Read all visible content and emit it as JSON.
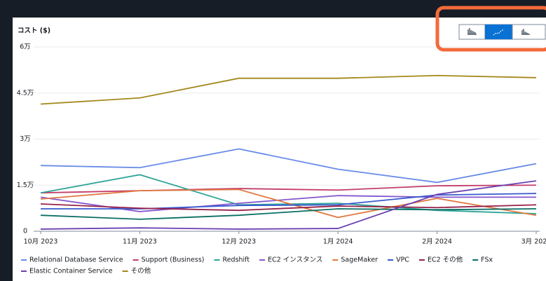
{
  "chart_data": {
    "type": "line",
    "ylabel": "コスト ($)",
    "categories": [
      "10月 2023",
      "11月 2023",
      "12月 2023",
      "1月 2024",
      "2月 2024",
      "3月 2024"
    ],
    "ylim": [
      0,
      60000
    ],
    "yticks": [
      {
        "value": 0,
        "label": "0"
      },
      {
        "value": 15000,
        "label": "1.5万"
      },
      {
        "value": 30000,
        "label": "3万"
      },
      {
        "value": 45000,
        "label": "4.5万"
      },
      {
        "value": 60000,
        "label": "6万"
      }
    ],
    "grid": true,
    "series": [
      {
        "name": "Relational Database Service",
        "color": "#688ae8",
        "values": [
          21400,
          20700,
          26800,
          20200,
          15900,
          22000
        ]
      },
      {
        "name": "Support (Business)",
        "color": "#c33d69",
        "values": [
          12500,
          13200,
          13900,
          13400,
          14800,
          15000
        ]
      },
      {
        "name": "Redshift",
        "color": "#2ea597",
        "values": [
          12500,
          18400,
          8600,
          9100,
          6800,
          5700
        ]
      },
      {
        "name": "EC2 インスタンス",
        "color": "#8456ce",
        "values": [
          11100,
          6400,
          9100,
          11600,
          11100,
          11100
        ]
      },
      {
        "name": "SageMaker",
        "color": "#e07941",
        "values": [
          10500,
          13200,
          13600,
          4500,
          10700,
          5200
        ]
      },
      {
        "name": "VPC",
        "color": "#3759ce",
        "values": [
          7300,
          7300,
          8400,
          8600,
          11800,
          12300
        ]
      },
      {
        "name": "EC2 その他",
        "color": "#962249",
        "values": [
          8900,
          7500,
          6800,
          8200,
          7700,
          8600
        ]
      },
      {
        "name": "FSx",
        "color": "#096f64",
        "values": [
          5200,
          3900,
          5200,
          7300,
          7000,
          7300
        ]
      },
      {
        "name": "Elastic Container Service",
        "color": "#6b40b2",
        "values": [
          700,
          1100,
          700,
          900,
          12000,
          16400
        ]
      },
      {
        "name": "その他",
        "color": "#a3881c",
        "values": [
          41400,
          43400,
          49800,
          49800,
          50700,
          50000
        ]
      }
    ]
  }
}
